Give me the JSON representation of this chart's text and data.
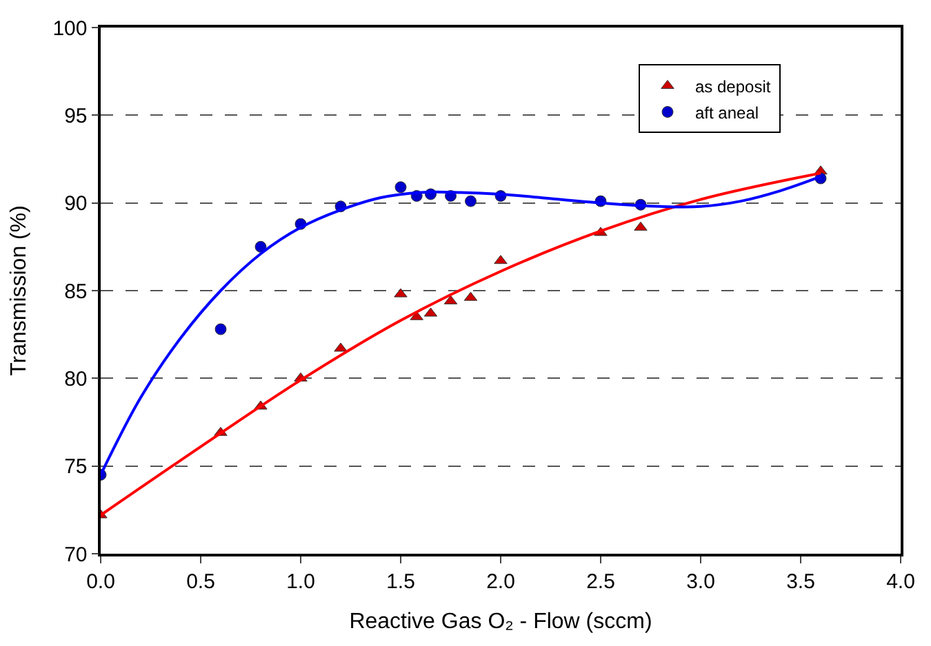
{
  "chart_data": {
    "type": "scatter",
    "xlabel": "Reactive Gas O₂ - Flow (sccm)",
    "ylabel": "Transmission (%)",
    "xlim": [
      0,
      4
    ],
    "xticks": [
      {
        "value": 0,
        "label": "0.0"
      },
      {
        "value": 0.5,
        "label": "0.5"
      },
      {
        "value": 1,
        "label": "1.0"
      },
      {
        "value": 1.5,
        "label": "1.5"
      },
      {
        "value": 2,
        "label": "2.0"
      },
      {
        "value": 2.5,
        "label": "2.5"
      },
      {
        "value": 3,
        "label": "3.0"
      },
      {
        "value": 3.5,
        "label": "3.5"
      },
      {
        "value": 4,
        "label": "4.0"
      }
    ],
    "ylim": [
      70,
      100
    ],
    "yticks": [
      70,
      75,
      80,
      85,
      90,
      95,
      100
    ],
    "grid": "y",
    "legend": "top right",
    "series": [
      {
        "name": "as deposit",
        "color": "#cc0000",
        "marker": "triangle",
        "x": [
          0,
          0.6,
          0.8,
          1.0,
          1.2,
          1.5,
          1.58,
          1.65,
          1.75,
          1.85,
          2.0,
          2.5,
          2.7,
          3.6
        ],
        "values": [
          72.2,
          76.9,
          78.4,
          80.0,
          81.7,
          84.8,
          83.5,
          83.7,
          84.4,
          84.6,
          86.7,
          88.3,
          88.6,
          91.8
        ]
      },
      {
        "name": "aft aneal",
        "color": "#0000cc",
        "marker": "circle",
        "x": [
          0,
          0.6,
          0.8,
          1.0,
          1.2,
          1.5,
          1.58,
          1.65,
          1.75,
          1.85,
          2.0,
          2.5,
          2.7,
          3.6
        ],
        "values": [
          74.5,
          82.8,
          87.5,
          88.8,
          89.8,
          90.9,
          90.4,
          90.5,
          90.4,
          90.1,
          90.4,
          90.1,
          89.9,
          91.4
        ]
      },
      {
        "type": "line",
        "color": "#ff0000",
        "x": [
          0,
          0.5,
          1.0,
          1.5,
          2.0,
          2.5,
          3.0,
          3.6
        ],
        "values": [
          72.2,
          76.1,
          79.9,
          83.3,
          86.1,
          88.4,
          90.2,
          91.7
        ]
      },
      {
        "type": "line",
        "color": "#0000ff",
        "x": [
          0,
          0.2,
          0.4,
          0.6,
          0.8,
          1.0,
          1.2,
          1.4,
          1.6,
          1.8,
          2.0,
          2.2,
          2.5,
          2.8,
          3.0,
          3.2,
          3.4,
          3.6
        ],
        "values": [
          74.5,
          78.9,
          82.3,
          85.0,
          87.1,
          88.6,
          89.6,
          90.3,
          90.6,
          90.6,
          90.5,
          90.3,
          90.0,
          89.8,
          89.8,
          90.1,
          90.7,
          91.5
        ]
      }
    ]
  }
}
